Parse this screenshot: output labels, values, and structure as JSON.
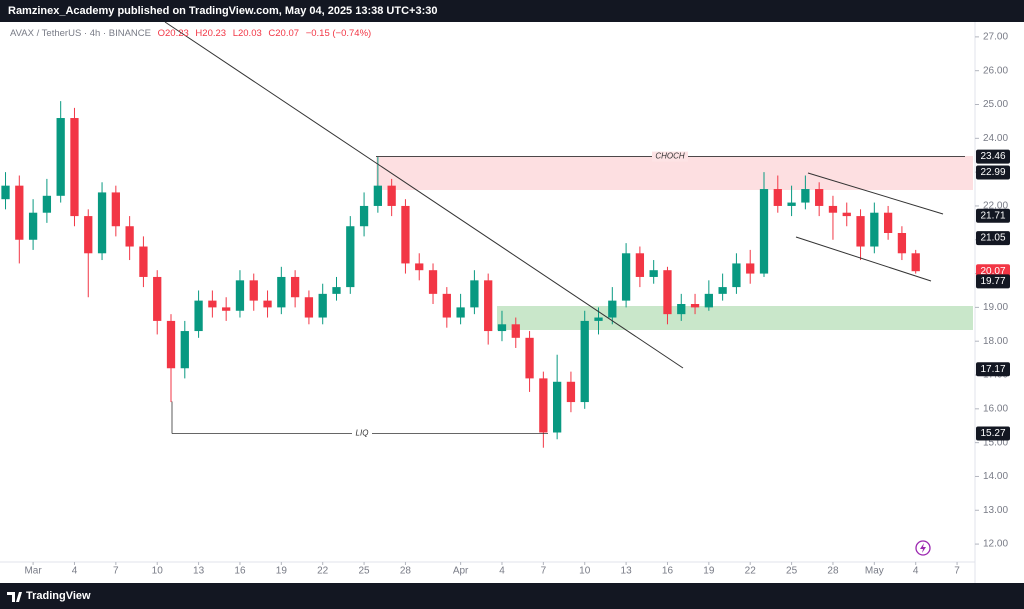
{
  "header": {
    "publisher": "Ramzinex_Academy published on TradingView.com, May 04, 2025 13:38 UTC+3:30",
    "symbol": "AVAX / TetherUS · 4h · BINANCE",
    "ohlc": [
      "O20.23",
      "H20.23",
      "L20.03",
      "C20.07",
      "−0.15 (−0.74%)"
    ]
  },
  "footer": {
    "brand": "TradingView"
  },
  "chart_data": {
    "type": "candlestick",
    "x": [
      -2,
      -1,
      0,
      1,
      2,
      3,
      4,
      5,
      6,
      7,
      8,
      9,
      10,
      11,
      12,
      13,
      14,
      15,
      16,
      17,
      18,
      19,
      20,
      21,
      22,
      23,
      24,
      25,
      26,
      27,
      28,
      29,
      30,
      31,
      32,
      33,
      34,
      35,
      36,
      37,
      38,
      39,
      40,
      41,
      42,
      43,
      44,
      45,
      46,
      47,
      48,
      49,
      50,
      51,
      52,
      53,
      54,
      55,
      56,
      57,
      58,
      59,
      60,
      61,
      62,
      63,
      64
    ],
    "open": [
      22.2,
      22.6,
      21.0,
      21.8,
      22.3,
      24.6,
      21.7,
      20.6,
      22.4,
      21.4,
      20.8,
      19.9,
      18.6,
      17.2,
      18.3,
      19.2,
      19.0,
      18.9,
      19.8,
      19.2,
      19.0,
      19.9,
      19.3,
      18.7,
      19.4,
      19.6,
      21.4,
      22.0,
      22.6,
      22.0,
      20.3,
      20.1,
      19.4,
      18.7,
      19.0,
      19.8,
      18.3,
      18.5,
      18.1,
      16.9,
      15.3,
      16.8,
      16.2,
      18.6,
      18.7,
      19.2,
      20.6,
      19.9,
      20.1,
      18.8,
      19.1,
      19.0,
      19.4,
      19.6,
      20.3,
      20.0,
      22.5,
      22.0,
      22.1,
      22.5,
      22.0,
      21.8,
      21.7,
      20.8,
      21.8,
      21.2,
      20.6
    ],
    "high": [
      23.0,
      22.9,
      22.2,
      22.8,
      25.1,
      24.9,
      21.9,
      22.7,
      22.6,
      21.7,
      21.1,
      20.1,
      18.8,
      18.6,
      19.5,
      19.5,
      19.3,
      20.1,
      20.0,
      19.5,
      20.2,
      20.1,
      19.5,
      19.7,
      19.9,
      21.7,
      22.4,
      23.46,
      22.8,
      22.2,
      20.6,
      20.3,
      19.6,
      19.4,
      20.1,
      20.0,
      18.9,
      18.7,
      18.3,
      17.1,
      17.6,
      17.1,
      18.9,
      19.0,
      19.6,
      20.9,
      20.8,
      20.4,
      20.2,
      19.4,
      19.4,
      19.8,
      20.0,
      20.6,
      20.7,
      23.0,
      22.9,
      22.6,
      22.9,
      22.7,
      22.3,
      22.1,
      21.9,
      22.1,
      22.0,
      21.4,
      20.7
    ],
    "low": [
      21.9,
      20.3,
      20.7,
      21.5,
      22.1,
      21.4,
      19.3,
      20.4,
      21.1,
      20.4,
      19.6,
      18.2,
      16.2,
      16.9,
      18.1,
      18.7,
      18.6,
      18.7,
      18.9,
      18.7,
      18.8,
      19.0,
      18.5,
      18.5,
      19.2,
      19.4,
      21.1,
      21.8,
      21.7,
      20.0,
      19.8,
      19.1,
      18.4,
      18.5,
      18.8,
      17.9,
      18.0,
      17.8,
      16.5,
      14.85,
      15.1,
      15.9,
      16.0,
      18.2,
      18.5,
      19.0,
      19.6,
      19.7,
      18.5,
      18.6,
      18.8,
      18.9,
      19.2,
      19.4,
      19.7,
      19.9,
      21.8,
      21.7,
      21.9,
      21.7,
      21.0,
      21.4,
      20.4,
      20.6,
      21.0,
      20.4,
      20.0
    ],
    "close": [
      22.6,
      21.0,
      21.8,
      22.3,
      24.6,
      21.7,
      20.6,
      22.4,
      21.4,
      20.8,
      19.9,
      18.6,
      17.2,
      18.3,
      19.2,
      19.0,
      18.9,
      19.8,
      19.2,
      19.0,
      19.9,
      19.3,
      18.7,
      19.4,
      19.6,
      21.4,
      22.0,
      22.6,
      22.0,
      20.3,
      20.1,
      19.4,
      18.7,
      19.0,
      19.8,
      18.3,
      18.5,
      18.1,
      16.9,
      15.3,
      16.8,
      16.2,
      18.6,
      18.7,
      19.2,
      20.6,
      19.9,
      20.1,
      18.8,
      19.1,
      19.0,
      19.4,
      19.6,
      20.3,
      20.0,
      22.5,
      22.0,
      22.1,
      22.5,
      22.0,
      21.8,
      21.7,
      20.8,
      21.8,
      21.2,
      20.6,
      20.07
    ],
    "up_color": "#089981",
    "down_color": "#f23645",
    "xlim": [
      -2.4,
      68.3
    ],
    "xticks": [
      {
        "value": 0,
        "label": "Mar"
      },
      {
        "value": 3,
        "label": "4"
      },
      {
        "value": 6,
        "label": "7"
      },
      {
        "value": 9,
        "label": "10"
      },
      {
        "value": 12,
        "label": "13"
      },
      {
        "value": 15,
        "label": "16"
      },
      {
        "value": 18,
        "label": "19"
      },
      {
        "value": 21,
        "label": "22"
      },
      {
        "value": 24,
        "label": "25"
      },
      {
        "value": 27,
        "label": "28"
      },
      {
        "value": 31,
        "label": "Apr"
      },
      {
        "value": 34,
        "label": "4"
      },
      {
        "value": 37,
        "label": "7"
      },
      {
        "value": 40,
        "label": "10"
      },
      {
        "value": 43,
        "label": "13"
      },
      {
        "value": 46,
        "label": "16"
      },
      {
        "value": 49,
        "label": "19"
      },
      {
        "value": 52,
        "label": "22"
      },
      {
        "value": 55,
        "label": "25"
      },
      {
        "value": 58,
        "label": "28"
      },
      {
        "value": 61,
        "label": "May"
      },
      {
        "value": 64,
        "label": "4"
      },
      {
        "value": 67,
        "label": "7"
      }
    ],
    "ylim": [
      11.47,
      27.44
    ],
    "yticks": [
      {
        "value": 12,
        "label": "12.00"
      },
      {
        "value": 13,
        "label": "13.00"
      },
      {
        "value": 14,
        "label": "14.00"
      },
      {
        "value": 15,
        "label": "15.00"
      },
      {
        "value": 16,
        "label": "16.00"
      },
      {
        "value": 17,
        "label": "17.00"
      },
      {
        "value": 18,
        "label": "18.00"
      },
      {
        "value": 19,
        "label": "19.00"
      },
      {
        "value": 20,
        "label": "20.00"
      },
      {
        "value": 21,
        "label": "21.00"
      },
      {
        "value": 22,
        "label": "22.00"
      },
      {
        "value": 23,
        "label": "23.00"
      },
      {
        "value": 24,
        "label": "24.00"
      },
      {
        "value": 25,
        "label": "25.00"
      },
      {
        "value": 26,
        "label": "26.00"
      },
      {
        "value": 27,
        "label": "27.00"
      }
    ],
    "price_marks": [
      23.46,
      22.99,
      21.71,
      21.05,
      20.07,
      19.77,
      17.17,
      15.27
    ],
    "price_mark_colors": [
      "#131722",
      "#131722",
      "#131722",
      "#131722",
      "#f23645",
      "#131722",
      "#131722",
      "#131722"
    ],
    "choch_label": "CHOCH",
    "liq_label": "LIQ"
  }
}
